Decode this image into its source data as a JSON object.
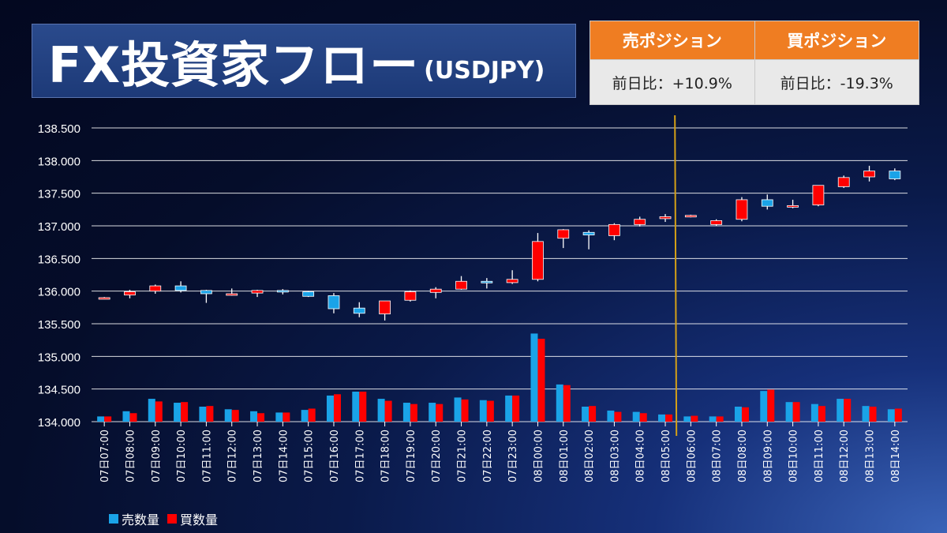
{
  "header": {
    "title": "FX投資家フロー",
    "subtitle": "(USDJPY)"
  },
  "positions": {
    "sell_header": "売ポジション",
    "buy_header": "買ポジション",
    "sell_change": "前日比：+10.9%",
    "buy_change": "前日比：-19.3%"
  },
  "legend": {
    "sell_label": "売数量",
    "buy_label": "買数量"
  },
  "colors": {
    "up": "#ff0000",
    "down": "#1aa3e8",
    "marker": "#d4a017",
    "grid": "#ffffff"
  },
  "chart_data": {
    "type": "candlestick",
    "ylim": [
      134.0,
      138.5
    ],
    "yticks": [
      "134.000",
      "134.500",
      "135.000",
      "135.500",
      "136.000",
      "136.500",
      "137.000",
      "137.500",
      "138.000",
      "138.500"
    ],
    "marker_after_index": 22,
    "categories": [
      "07日07:00",
      "07日08:00",
      "07日09:00",
      "07日10:00",
      "07日11:00",
      "07日12:00",
      "07日13:00",
      "07日14:00",
      "07日15:00",
      "07日16:00",
      "07日17:00",
      "07日18:00",
      "07日19:00",
      "07日20:00",
      "07日21:00",
      "07日22:00",
      "07日23:00",
      "08日00:00",
      "08日01:00",
      "08日02:00",
      "08日03:00",
      "08日04:00",
      "08日05:00",
      "08日06:00",
      "08日07:00",
      "08日08:00",
      "08日09:00",
      "08日10:00",
      "08日11:00",
      "08日12:00",
      "08日13:00",
      "08日14:00"
    ],
    "ohlc": [
      [
        135.89,
        135.91,
        135.88,
        135.9
      ],
      [
        135.94,
        136.02,
        135.89,
        135.99
      ],
      [
        136.0,
        136.1,
        135.96,
        136.08
      ],
      [
        136.08,
        136.15,
        135.98,
        136.01
      ],
      [
        136.01,
        136.02,
        135.82,
        135.96
      ],
      [
        135.96,
        136.04,
        135.93,
        135.96
      ],
      [
        135.97,
        136.02,
        135.91,
        136.01
      ],
      [
        136.01,
        136.03,
        135.95,
        135.99
      ],
      [
        135.99,
        136.0,
        135.91,
        135.92
      ],
      [
        135.93,
        135.97,
        135.66,
        135.73
      ],
      [
        135.74,
        135.83,
        135.6,
        135.66
      ],
      [
        135.65,
        135.85,
        135.55,
        135.85
      ],
      [
        135.86,
        136.01,
        135.84,
        135.99
      ],
      [
        135.98,
        136.06,
        135.89,
        136.03
      ],
      [
        136.03,
        136.23,
        136.02,
        136.15
      ],
      [
        136.15,
        136.2,
        136.04,
        136.13
      ],
      [
        136.13,
        136.32,
        136.11,
        136.18
      ],
      [
        136.18,
        136.89,
        136.15,
        136.76
      ],
      [
        136.81,
        136.95,
        136.66,
        136.94
      ],
      [
        136.9,
        136.93,
        136.64,
        136.86
      ],
      [
        136.85,
        137.04,
        136.78,
        137.02
      ],
      [
        137.02,
        137.14,
        136.99,
        137.1
      ],
      [
        137.11,
        137.18,
        137.06,
        137.14
      ],
      [
        137.15,
        137.17,
        137.13,
        137.16
      ],
      [
        137.02,
        137.1,
        137.0,
        137.08
      ],
      [
        137.1,
        137.44,
        137.07,
        137.4
      ],
      [
        137.4,
        137.48,
        137.25,
        137.3
      ],
      [
        137.3,
        137.4,
        137.27,
        137.31
      ],
      [
        137.32,
        137.62,
        137.3,
        137.62
      ],
      [
        137.6,
        137.77,
        137.58,
        137.74
      ],
      [
        137.75,
        137.92,
        137.68,
        137.84
      ],
      [
        137.84,
        137.88,
        137.7,
        137.72
      ]
    ],
    "sell_volume": [
      134.08,
      134.16,
      134.35,
      134.29,
      134.23,
      134.19,
      134.16,
      134.14,
      134.18,
      134.4,
      134.46,
      134.35,
      134.29,
      134.29,
      134.37,
      134.33,
      134.4,
      135.35,
      134.57,
      134.23,
      134.17,
      134.15,
      134.11,
      134.08,
      134.08,
      134.23,
      134.47,
      134.3,
      134.27,
      134.35,
      134.24,
      134.19
    ],
    "buy_volume": [
      134.08,
      134.13,
      134.31,
      134.3,
      134.24,
      134.18,
      134.13,
      134.14,
      134.2,
      134.42,
      134.46,
      134.32,
      134.27,
      134.27,
      134.34,
      134.32,
      134.4,
      135.27,
      134.56,
      134.24,
      134.15,
      134.13,
      134.11,
      134.09,
      134.08,
      134.22,
      134.49,
      134.3,
      134.24,
      134.35,
      134.23,
      134.2
    ]
  }
}
